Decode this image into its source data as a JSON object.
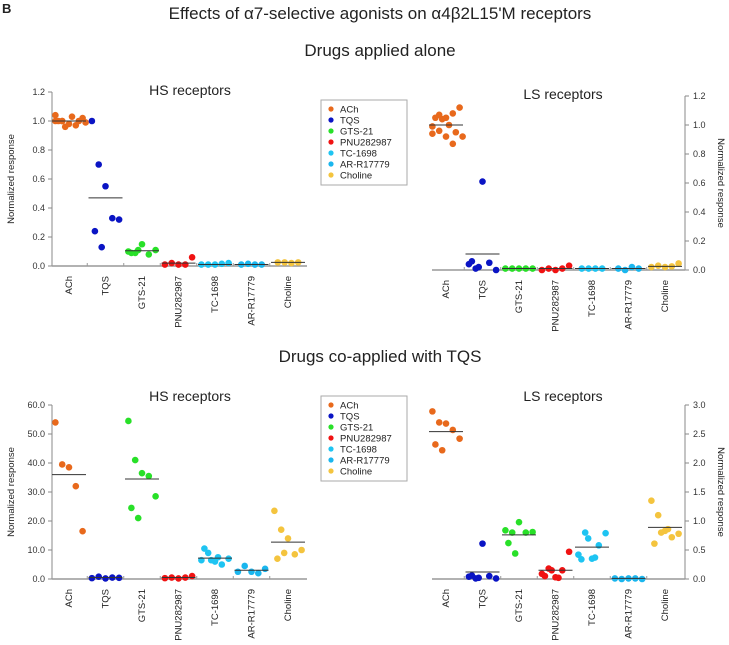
{
  "panel_label": "B",
  "title": "Effects of α7-selective agonists on α4β2L15'M receptors",
  "section_alone": "Drugs applied alone",
  "section_coapplied": "Drugs co-applied with TQS",
  "colors": {
    "ACh": "#e8691c",
    "TQS": "#0a14c4",
    "GTS-21": "#28e028",
    "PNU282987": "#f01212",
    "TC-1698": "#1ec4f2",
    "AR-R17779": "#1ab6ee",
    "Choline": "#f4c43e"
  },
  "legend": [
    "ACh",
    "TQS",
    "GTS-21",
    "PNU282987",
    "TC-1698",
    "AR-R17779",
    "Choline"
  ],
  "chart_data": [
    {
      "type": "scatter",
      "title": "HS receptors",
      "ylabel": "Normalized response",
      "ylim": [
        0,
        1.2
      ],
      "yticks": [
        "0.0",
        "0.2",
        "0.4",
        "0.6",
        "0.8",
        "1.0",
        "1.2"
      ],
      "yaxis_side": "left",
      "categories": [
        "ACh",
        "TQS",
        "GTS-21",
        "PNU282987",
        "TC-1698",
        "AR-R17779",
        "Choline"
      ],
      "points": [
        [
          1.0,
          1.0,
          0.98,
          0.97,
          1.02,
          1.0,
          0.96,
          1.03,
          1.0,
          0.99,
          1.04,
          1.0
        ],
        [
          1.0,
          0.7,
          0.55,
          0.33,
          0.32,
          0.24,
          0.13
        ],
        [
          0.1,
          0.09,
          0.15,
          0.08,
          0.11,
          0.09,
          0.11
        ],
        [
          0.01,
          0.02,
          0.01,
          0.01,
          0.06
        ],
        [
          0.01,
          0.01,
          0.01,
          0.015,
          0.02
        ],
        [
          0.01,
          0.015,
          0.01,
          0.01
        ],
        [
          0.025,
          0.025,
          0.02,
          0.025
        ]
      ],
      "means": [
        1.0,
        0.47,
        0.105,
        0.02,
        0.01,
        0.01,
        0.025
      ]
    },
    {
      "type": "scatter",
      "title": "LS receptors",
      "ylabel": "Normalized response",
      "ylim": [
        0,
        1.2
      ],
      "yticks": [
        "0.0",
        "0.2",
        "0.4",
        "0.6",
        "0.8",
        "1.0",
        "1.2"
      ],
      "yaxis_side": "right",
      "categories": [
        "ACh",
        "TQS",
        "GTS-21",
        "PNU282987",
        "TC-1698",
        "AR-R17779",
        "Choline"
      ],
      "points": [
        [
          0.99,
          1.07,
          1.05,
          1.08,
          1.12,
          1.05,
          1.04,
          1.0,
          0.95,
          0.92,
          0.94,
          0.96,
          0.92,
          0.87
        ],
        [
          0.04,
          0.01,
          0.61,
          0.05,
          0.0,
          0.06,
          0.02
        ],
        [
          0.01,
          0.01,
          0.01,
          0.01,
          0.01
        ],
        [
          0.0,
          0.01,
          0.0,
          0.01,
          0.03
        ],
        [
          0.01,
          0.01,
          0.01,
          0.01
        ],
        [
          0.01,
          0.0,
          0.02,
          0.01
        ],
        [
          0.02,
          0.03,
          0.02,
          0.025,
          0.045
        ]
      ],
      "means": [
        1.0,
        0.11,
        0.01,
        0.01,
        0.01,
        0.01,
        0.025
      ]
    },
    {
      "type": "scatter",
      "title": "HS receptors",
      "ylabel": "Normalized response",
      "ylim": [
        0,
        60
      ],
      "yticks": [
        "0.0",
        "10.0",
        "20.0",
        "30.0",
        "40.0",
        "50.0",
        "60.0"
      ],
      "yaxis_side": "left",
      "categories": [
        "ACh",
        "TQS",
        "GTS-21",
        "PNU282987",
        "TC-1698",
        "AR-R17779",
        "Choline"
      ],
      "points": [
        [
          54,
          39.5,
          38.5,
          32,
          16.5
        ],
        [
          0.3,
          0.8,
          0.2,
          0.5,
          0.4
        ],
        [
          54.5,
          41,
          36.5,
          35.5,
          28.5,
          24.5,
          21
        ],
        [
          0.3,
          0.5,
          0.2,
          0.5,
          1.0
        ],
        [
          6.5,
          9,
          6,
          5,
          7,
          10.5,
          6.5,
          7.5
        ],
        [
          2.5,
          4.5,
          2.5,
          2,
          3.5
        ],
        [
          23.5,
          17,
          14,
          8.5,
          10,
          7,
          9
        ]
      ],
      "means": [
        36,
        0.5,
        34.5,
        0.5,
        7.2,
        3,
        12.7
      ]
    },
    {
      "type": "scatter",
      "title": "LS receptors",
      "ylabel": "Normalized response",
      "ylim": [
        0,
        3.0
      ],
      "yticks": [
        "0.0",
        "0.5",
        "1.0",
        "1.5",
        "2.0",
        "2.5",
        "3.0"
      ],
      "yaxis_side": "right",
      "categories": [
        "ACh",
        "TQS",
        "GTS-21",
        "PNU282987",
        "TC-1698",
        "AR-R17779",
        "Choline"
      ],
      "points": [
        [
          2.89,
          2.7,
          2.68,
          2.57,
          2.42,
          2.32,
          2.22
        ],
        [
          0.04,
          0.01,
          0.61,
          0.05,
          0.01,
          0.06,
          0.02
        ],
        [
          0.84,
          0.8,
          0.98,
          0.8,
          0.81,
          0.62,
          0.44
        ],
        [
          0.09,
          0.18,
          0.03,
          0.15,
          0.47,
          0.05,
          0.15,
          0.02
        ],
        [
          0.42,
          0.8,
          0.35,
          0.58,
          0.79,
          0.34,
          0.7,
          0.37
        ],
        [
          0.01,
          0.0,
          0.01,
          0.01,
          0.0
        ],
        [
          1.35,
          1.1,
          0.83,
          0.72,
          0.78,
          0.61,
          0.8,
          0.86
        ]
      ],
      "means": [
        2.54,
        0.12,
        0.76,
        0.15,
        0.55,
        0.01,
        0.89
      ]
    }
  ]
}
